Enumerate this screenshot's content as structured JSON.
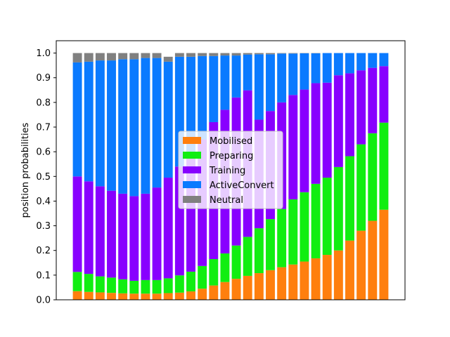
{
  "chart_data": {
    "type": "bar",
    "stacked": true,
    "xlabel": "",
    "ylabel": "position probabilities",
    "ylim": [
      0,
      1.05
    ],
    "yticks": [
      0.0,
      0.1,
      0.2,
      0.3,
      0.4,
      0.5,
      0.6,
      0.7,
      0.8,
      0.9,
      1.0
    ],
    "ytick_labels": [
      "0.0",
      "0.1",
      "0.2",
      "0.3",
      "0.4",
      "0.5",
      "0.6",
      "0.7",
      "0.8",
      "0.9",
      "1.0"
    ],
    "x_tick_labels_visible": false,
    "legend_position": "center",
    "series": [
      {
        "name": "Mobilised",
        "color": "#ff7f0e",
        "values": [
          0.035,
          0.032,
          0.03,
          0.028,
          0.026,
          0.025,
          0.025,
          0.025,
          0.027,
          0.029,
          0.034,
          0.045,
          0.058,
          0.072,
          0.085,
          0.097,
          0.108,
          0.12,
          0.132,
          0.143,
          0.155,
          0.168,
          0.182,
          0.2,
          0.24,
          0.28,
          0.32,
          0.365
        ]
      },
      {
        "name": "Preparing",
        "color": "#11ee11",
        "values": [
          0.078,
          0.073,
          0.065,
          0.062,
          0.057,
          0.052,
          0.055,
          0.055,
          0.06,
          0.07,
          0.08,
          0.092,
          0.107,
          0.116,
          0.135,
          0.158,
          0.182,
          0.207,
          0.236,
          0.264,
          0.281,
          0.302,
          0.313,
          0.338,
          0.342,
          0.35,
          0.355,
          0.353
        ]
      },
      {
        "name": "Training",
        "color": "#8800ff",
        "values": [
          0.387,
          0.375,
          0.365,
          0.352,
          0.347,
          0.343,
          0.35,
          0.375,
          0.408,
          0.441,
          0.481,
          0.513,
          0.555,
          0.582,
          0.6,
          0.594,
          0.44,
          0.438,
          0.432,
          0.423,
          0.416,
          0.408,
          0.385,
          0.372,
          0.336,
          0.3,
          0.265,
          0.229
        ]
      },
      {
        "name": "ActiveConvert",
        "color": "#0a7aff",
        "values": [
          0.462,
          0.485,
          0.51,
          0.528,
          0.545,
          0.555,
          0.55,
          0.525,
          0.47,
          0.445,
          0.39,
          0.338,
          0.268,
          0.22,
          0.17,
          0.145,
          0.265,
          0.23,
          0.198,
          0.168,
          0.147,
          0.121,
          0.12,
          0.09,
          0.082,
          0.07,
          0.06,
          0.053
        ]
      },
      {
        "name": "Neutral",
        "color": "#808080",
        "values": [
          0.038,
          0.035,
          0.03,
          0.03,
          0.025,
          0.025,
          0.02,
          0.02,
          0.02,
          0.015,
          0.015,
          0.012,
          0.012,
          0.01,
          0.01,
          0.006,
          0.005,
          0.005,
          0.002,
          0.002,
          0.001,
          0.001,
          0.0,
          0.0,
          0.0,
          0.0,
          0.0,
          0.0
        ]
      }
    ]
  }
}
